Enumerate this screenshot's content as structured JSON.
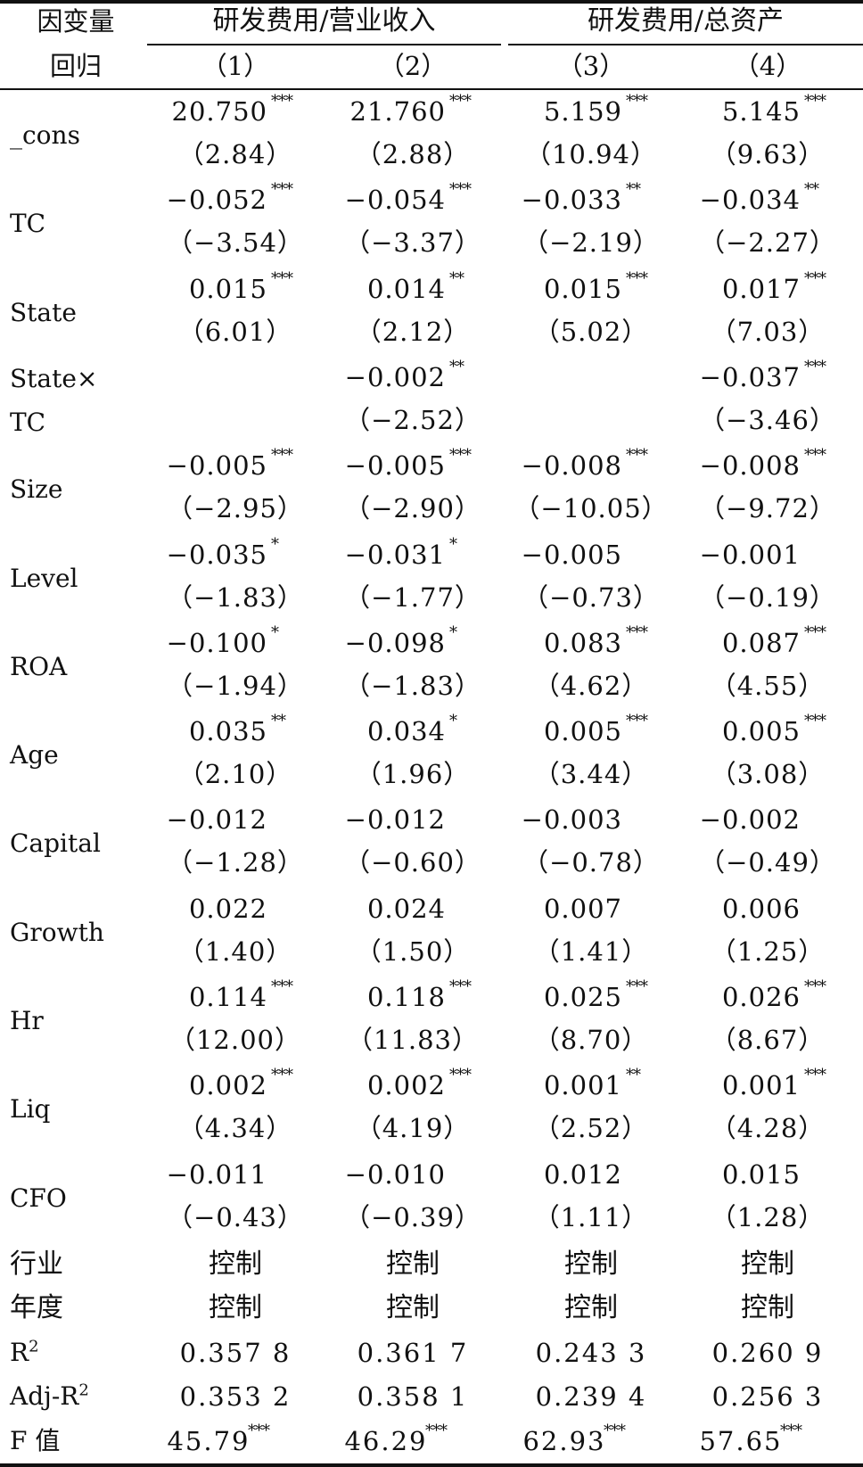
{
  "header": {
    "dep_var_label_1": "因变量",
    "dep_var_label_2": "回归",
    "group_1": "研发费用/营业收入",
    "group_2": "研发费用/总资产",
    "columns": [
      "（1）",
      "（2）",
      "（3）",
      "（4）"
    ]
  },
  "rows": [
    {
      "label": "_cons",
      "coef": [
        "20.750",
        "21.760",
        "5.159",
        "5.145"
      ],
      "stars": [
        "***",
        "***",
        "***",
        "***"
      ],
      "t": [
        "（2.84）",
        "（2.88）",
        "（10.94）",
        "（9.63）"
      ]
    },
    {
      "label": "TC",
      "coef": [
        "−0.052",
        "−0.054",
        "−0.033",
        "−0.034"
      ],
      "stars": [
        "***",
        "***",
        "**",
        "**"
      ],
      "t": [
        "（−3.54）",
        "（−3.37）",
        "（−2.19）",
        "（−2.27）"
      ]
    },
    {
      "label": "State",
      "coef": [
        "0.015",
        "0.014",
        "0.015",
        "0.017"
      ],
      "stars": [
        "***",
        "**",
        "***",
        "***"
      ],
      "t": [
        "（6.01）",
        "（2.12）",
        "（5.02）",
        "（7.03）"
      ]
    },
    {
      "label": "State×",
      "label2": "TC",
      "coef": [
        "",
        "−0.002",
        "",
        "−0.037"
      ],
      "stars": [
        "",
        "**",
        "",
        "***"
      ],
      "t": [
        "",
        "（−2.52）",
        "",
        "（−3.46）"
      ]
    },
    {
      "label": "Size",
      "coef": [
        "−0.005",
        "−0.005",
        "−0.008",
        "−0.008"
      ],
      "stars": [
        "***",
        "***",
        "***",
        "***"
      ],
      "t": [
        "（−2.95）",
        "（−2.90）",
        "（−10.05）",
        "（−9.72）"
      ]
    },
    {
      "label": "Level",
      "coef": [
        "−0.035",
        "−0.031",
        "−0.005",
        "−0.001"
      ],
      "stars": [
        "*",
        "*",
        "",
        ""
      ],
      "t": [
        "（−1.83）",
        "（−1.77）",
        "（−0.73）",
        "（−0.19）"
      ]
    },
    {
      "label": "ROA",
      "coef": [
        "−0.100",
        "−0.098",
        "0.083",
        "0.087"
      ],
      "stars": [
        "*",
        "*",
        "***",
        "***"
      ],
      "t": [
        "（−1.94）",
        "（−1.83）",
        "（4.62）",
        "（4.55）"
      ]
    },
    {
      "label": "Age",
      "coef": [
        "0.035",
        "0.034",
        "0.005",
        "0.005"
      ],
      "stars": [
        "**",
        "*",
        "***",
        "***"
      ],
      "t": [
        "（2.10）",
        "（1.96）",
        "（3.44）",
        "（3.08）"
      ]
    },
    {
      "label": "Capital",
      "coef": [
        "−0.012",
        "−0.012",
        "−0.003",
        "−0.002"
      ],
      "stars": [
        "",
        "",
        "",
        ""
      ],
      "t": [
        "（−1.28）",
        "（−0.60）",
        "（−0.78）",
        "（−0.49）"
      ]
    },
    {
      "label": "Growth",
      "coef": [
        "0.022",
        "0.024",
        "0.007",
        "0.006"
      ],
      "stars": [
        "",
        "",
        "",
        ""
      ],
      "t": [
        "（1.40）",
        "（1.50）",
        "（1.41）",
        "（1.25）"
      ]
    },
    {
      "label": "Hr",
      "coef": [
        "0.114",
        "0.118",
        "0.025",
        "0.026"
      ],
      "stars": [
        "***",
        "***",
        "***",
        "***"
      ],
      "t": [
        "（12.00）",
        "（11.83）",
        "（8.70）",
        "（8.67）"
      ]
    },
    {
      "label": "Liq",
      "coef": [
        "0.002",
        "0.002",
        "0.001",
        "0.001"
      ],
      "stars": [
        "***",
        "***",
        "**",
        "***"
      ],
      "t": [
        "（4.34）",
        "（4.19）",
        "（2.52）",
        "（4.28）"
      ]
    },
    {
      "label": "CFO",
      "coef": [
        "−0.011",
        "−0.010",
        "0.012",
        "0.015"
      ],
      "stars": [
        "",
        "",
        "",
        ""
      ],
      "t": [
        "（−0.43）",
        "（−0.39）",
        "（1.11）",
        "（1.28）"
      ]
    }
  ],
  "controls": [
    {
      "label": "行业",
      "values": [
        "控制",
        "控制",
        "控制",
        "控制"
      ]
    },
    {
      "label": "年度",
      "values": [
        "控制",
        "控制",
        "控制",
        "控制"
      ]
    }
  ],
  "fit_stats": [
    {
      "label": "R",
      "sup": "2",
      "values": [
        "0.357 8",
        "0.361 7",
        "0.243 3",
        "0.260 9"
      ],
      "stars": [
        "",
        "",
        "",
        ""
      ]
    },
    {
      "label": "Adj-R",
      "sup": "2",
      "values": [
        "0.353 2",
        "0.358 1",
        "0.239 4",
        "0.256 3"
      ],
      "stars": [
        "",
        "",
        "",
        ""
      ]
    },
    {
      "label": "F 值",
      "sup": "",
      "values": [
        "45.79",
        "46.29",
        "62.93",
        "57.65"
      ],
      "stars": [
        "***",
        "***",
        "***",
        "***"
      ]
    }
  ]
}
